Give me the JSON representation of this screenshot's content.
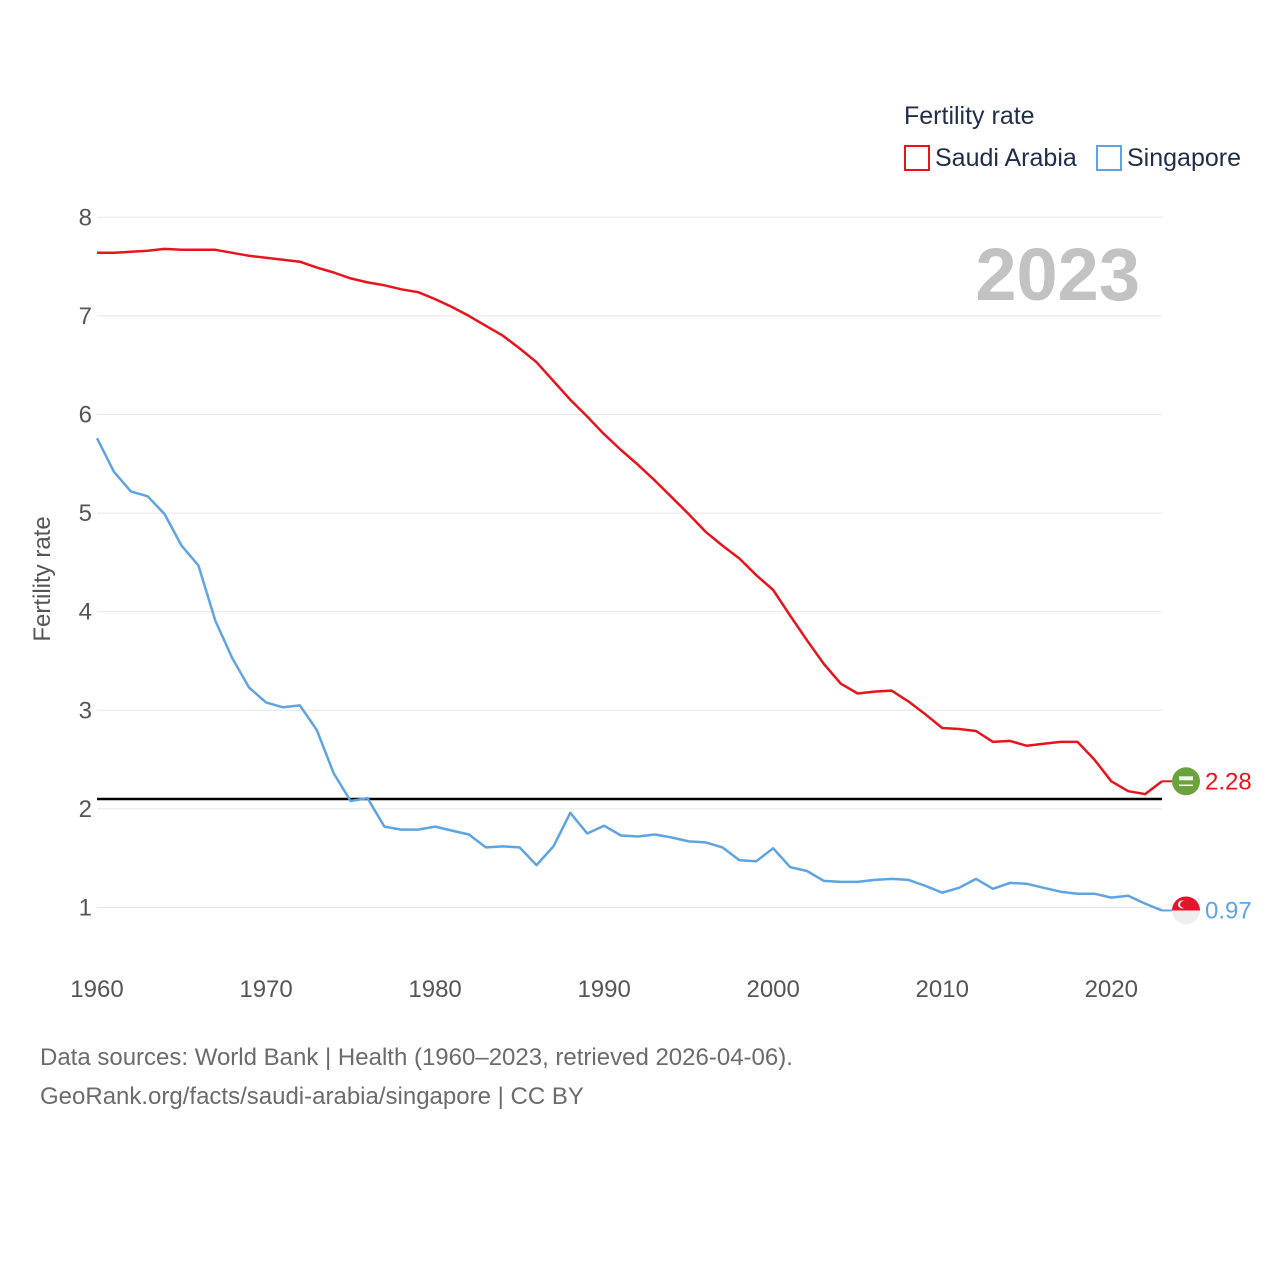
{
  "chart_data": {
    "type": "line",
    "legend_title": "Fertility rate",
    "ylabel": "Fertility rate",
    "year_label": "2023",
    "xlim": [
      1960,
      2023
    ],
    "ylim": [
      0.3,
      8
    ],
    "yticks": [
      1,
      2,
      3,
      4,
      5,
      6,
      7,
      8
    ],
    "xticks": [
      1960,
      1970,
      1980,
      1990,
      2000,
      2010,
      2020
    ],
    "reference_line": 2.1,
    "x": [
      1960,
      1961,
      1962,
      1963,
      1964,
      1965,
      1966,
      1967,
      1968,
      1969,
      1970,
      1971,
      1972,
      1973,
      1974,
      1975,
      1976,
      1977,
      1978,
      1979,
      1980,
      1981,
      1982,
      1983,
      1984,
      1985,
      1986,
      1987,
      1988,
      1989,
      1990,
      1991,
      1992,
      1993,
      1994,
      1995,
      1996,
      1997,
      1998,
      1999,
      2000,
      2001,
      2002,
      2003,
      2004,
      2005,
      2006,
      2007,
      2008,
      2009,
      2010,
      2011,
      2012,
      2013,
      2014,
      2015,
      2016,
      2017,
      2018,
      2019,
      2020,
      2021,
      2022,
      2023
    ],
    "series": [
      {
        "name": "Saudi Arabia",
        "color": "#e8141d",
        "end_label": "2.28",
        "flag": "saudi-arabia-flag-icon",
        "values": [
          7.64,
          7.64,
          7.65,
          7.66,
          7.68,
          7.67,
          7.67,
          7.67,
          7.64,
          7.61,
          7.59,
          7.57,
          7.55,
          7.49,
          7.44,
          7.38,
          7.34,
          7.31,
          7.27,
          7.24,
          7.17,
          7.09,
          7.0,
          6.9,
          6.8,
          6.67,
          6.53,
          6.34,
          6.15,
          5.98,
          5.8,
          5.64,
          5.49,
          5.33,
          5.16,
          4.99,
          4.81,
          4.67,
          4.54,
          4.37,
          4.22,
          3.96,
          3.71,
          3.47,
          3.27,
          3.17,
          3.19,
          3.2,
          3.09,
          2.96,
          2.82,
          2.81,
          2.79,
          2.68,
          2.69,
          2.64,
          2.66,
          2.68,
          2.68,
          2.5,
          2.28,
          2.18,
          2.15,
          2.28
        ]
      },
      {
        "name": "Singapore",
        "color": "#5ea4e3",
        "end_label": "0.97",
        "flag": "singapore-flag-icon",
        "values": [
          5.76,
          5.42,
          5.22,
          5.17,
          4.99,
          4.67,
          4.47,
          3.91,
          3.53,
          3.23,
          3.08,
          3.03,
          3.05,
          2.8,
          2.36,
          2.08,
          2.11,
          1.82,
          1.79,
          1.79,
          1.82,
          1.78,
          1.74,
          1.61,
          1.62,
          1.61,
          1.43,
          1.62,
          1.96,
          1.75,
          1.83,
          1.73,
          1.72,
          1.74,
          1.71,
          1.67,
          1.66,
          1.61,
          1.48,
          1.47,
          1.6,
          1.41,
          1.37,
          1.27,
          1.26,
          1.26,
          1.28,
          1.29,
          1.28,
          1.22,
          1.15,
          1.2,
          1.29,
          1.19,
          1.25,
          1.24,
          1.2,
          1.16,
          1.14,
          1.14,
          1.1,
          1.12,
          1.04,
          0.97
        ]
      }
    ]
  },
  "footer": {
    "line1": "Data sources: World Bank | Health (1960–2023, retrieved 2026-04-06).",
    "line2": "GeoRank.org/facts/saudi-arabia/singapore | CC BY"
  }
}
